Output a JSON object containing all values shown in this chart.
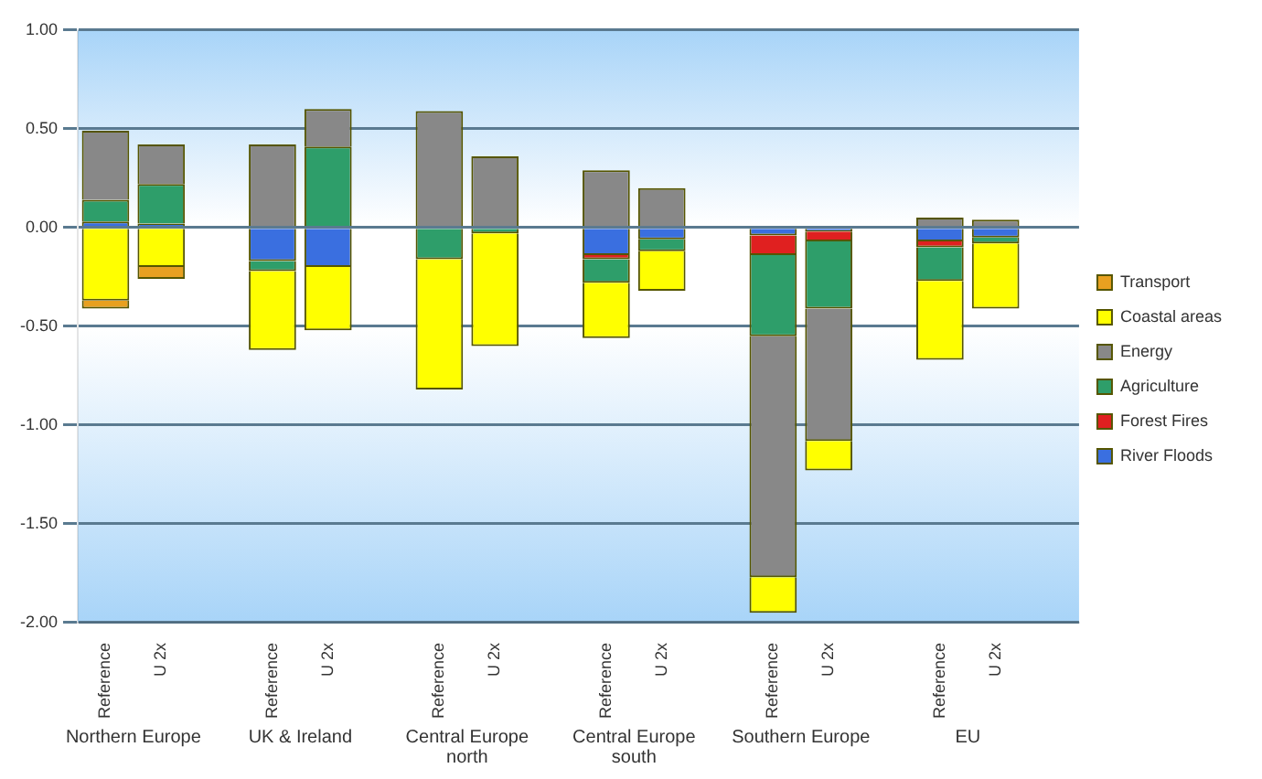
{
  "chart_data": {
    "type": "bar",
    "stacked": true,
    "categories": [
      "Reference",
      "U 2x",
      null,
      "Reference",
      "U 2x",
      null,
      "Reference",
      "U 2x",
      null,
      "Reference",
      "U 2x",
      null,
      "Reference",
      "U 2x",
      null,
      "Reference",
      "U 2x",
      null
    ],
    "series": [
      {
        "name": "River Floods",
        "color": "#3a6fe0",
        "values": [
          0.03,
          0.02,
          null,
          -0.17,
          -0.2,
          null,
          null,
          null,
          null,
          -0.14,
          -0.06,
          null,
          -0.04,
          -0.02,
          null,
          -0.07,
          -0.05,
          null
        ]
      },
      {
        "name": "Forest Fires",
        "color": "#e02020",
        "values": [
          null,
          null,
          null,
          null,
          null,
          null,
          null,
          null,
          null,
          -0.02,
          null,
          null,
          -0.1,
          -0.05,
          null,
          -0.03,
          null,
          null
        ]
      },
      {
        "name": "Agriculture",
        "color": "#2e9e6a",
        "values": [
          0.11,
          0.2,
          null,
          -0.05,
          0.41,
          null,
          -0.16,
          -0.03,
          null,
          -0.12,
          -0.06,
          null,
          -0.41,
          -0.34,
          null,
          -0.17,
          -0.03,
          null
        ]
      },
      {
        "name": "Energy",
        "color": "#888888",
        "values": [
          0.35,
          0.2,
          null,
          0.42,
          0.19,
          null,
          0.59,
          0.36,
          null,
          0.29,
          0.2,
          null,
          -1.22,
          -0.67,
          null,
          0.05,
          0.04,
          null
        ]
      },
      {
        "name": "Coastal areas",
        "color": "#ffff00",
        "values": [
          -0.37,
          -0.2,
          null,
          -0.4,
          -0.32,
          null,
          -0.66,
          -0.57,
          null,
          -0.28,
          -0.2,
          null,
          -0.18,
          -0.15,
          null,
          -0.4,
          -0.33,
          null
        ]
      },
      {
        "name": "Transport",
        "color": "#e8a020",
        "values": [
          -0.04,
          -0.06,
          null,
          null,
          null,
          null,
          null,
          null,
          null,
          null,
          null,
          null,
          null,
          null,
          null,
          null,
          null,
          null
        ]
      }
    ],
    "ylim": [
      -2,
      1
    ],
    "yticks": [
      {
        "value": -2,
        "label": "-2.00"
      },
      {
        "value": -1.5,
        "label": "-1.50"
      },
      {
        "value": -1,
        "label": "-1.00"
      },
      {
        "value": -0.5,
        "label": "-0.50"
      },
      {
        "value": 0,
        "label": "0.00"
      },
      {
        "value": 0.5,
        "label": "0.50"
      },
      {
        "value": 1,
        "label": "1.00"
      }
    ],
    "grid": "y",
    "legend": "right",
    "annotations": [
      "Northern Europe",
      "UK & Ireland",
      "Central Europe north",
      "Central Europe south",
      "Southern Europe",
      "EU"
    ]
  }
}
